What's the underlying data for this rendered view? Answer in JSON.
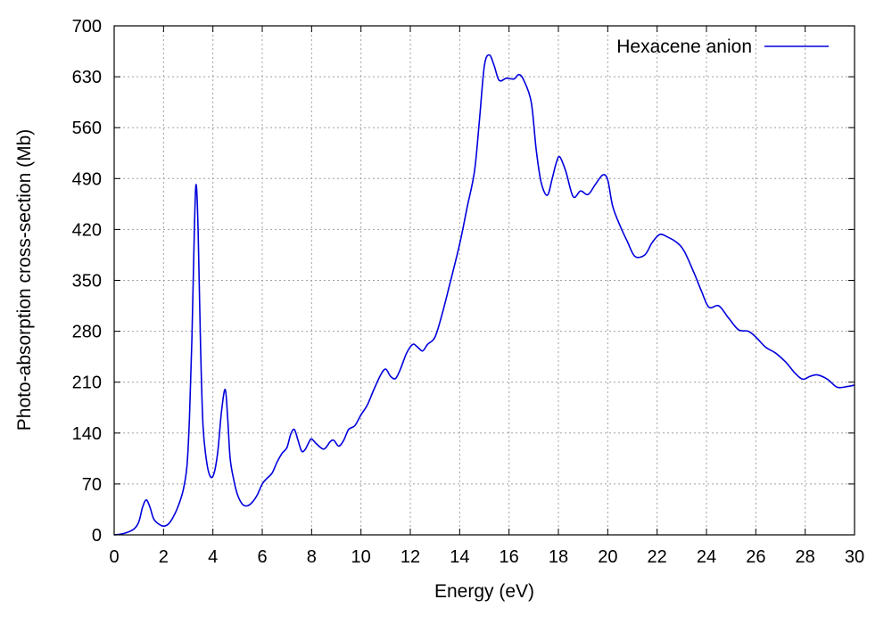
{
  "chart_data": {
    "type": "line",
    "xlabel": "Energy (eV)",
    "ylabel": "Photo-absorption cross-section (Mb)",
    "xlim": [
      0,
      30
    ],
    "ylim": [
      0,
      700
    ],
    "xticks": [
      "0",
      "2",
      "4",
      "6",
      "8",
      "10",
      "12",
      "14",
      "16",
      "18",
      "20",
      "22",
      "24",
      "26",
      "28",
      "30"
    ],
    "yticks": [
      "0",
      "70",
      "140",
      "210",
      "280",
      "350",
      "420",
      "490",
      "560",
      "630",
      "700"
    ],
    "grid": true,
    "legend_position": "top-right",
    "series": [
      {
        "name": "Hexacene anion",
        "color": "#0000dd",
        "points": [
          [
            0.0,
            0
          ],
          [
            0.4,
            2
          ],
          [
            0.8,
            8
          ],
          [
            1.0,
            18
          ],
          [
            1.15,
            38
          ],
          [
            1.3,
            48
          ],
          [
            1.45,
            38
          ],
          [
            1.6,
            22
          ],
          [
            1.8,
            15
          ],
          [
            2.0,
            12
          ],
          [
            2.2,
            15
          ],
          [
            2.4,
            25
          ],
          [
            2.6,
            40
          ],
          [
            2.8,
            62
          ],
          [
            2.95,
            95
          ],
          [
            3.05,
            160
          ],
          [
            3.15,
            270
          ],
          [
            3.25,
            420
          ],
          [
            3.32,
            482
          ],
          [
            3.4,
            420
          ],
          [
            3.5,
            260
          ],
          [
            3.6,
            150
          ],
          [
            3.75,
            100
          ],
          [
            3.9,
            80
          ],
          [
            4.05,
            85
          ],
          [
            4.2,
            115
          ],
          [
            4.35,
            170
          ],
          [
            4.5,
            200
          ],
          [
            4.6,
            160
          ],
          [
            4.7,
            105
          ],
          [
            4.85,
            75
          ],
          [
            5.0,
            55
          ],
          [
            5.2,
            42
          ],
          [
            5.4,
            40
          ],
          [
            5.6,
            45
          ],
          [
            5.8,
            55
          ],
          [
            6.0,
            70
          ],
          [
            6.2,
            78
          ],
          [
            6.4,
            85
          ],
          [
            6.6,
            100
          ],
          [
            6.8,
            112
          ],
          [
            7.0,
            120
          ],
          [
            7.15,
            138
          ],
          [
            7.3,
            145
          ],
          [
            7.45,
            130
          ],
          [
            7.6,
            115
          ],
          [
            7.75,
            118
          ],
          [
            7.9,
            128
          ],
          [
            8.0,
            132
          ],
          [
            8.2,
            125
          ],
          [
            8.5,
            118
          ],
          [
            8.75,
            128
          ],
          [
            8.9,
            130
          ],
          [
            9.1,
            122
          ],
          [
            9.3,
            130
          ],
          [
            9.5,
            145
          ],
          [
            9.75,
            150
          ],
          [
            10.0,
            165
          ],
          [
            10.25,
            178
          ],
          [
            10.5,
            198
          ],
          [
            10.8,
            220
          ],
          [
            11.0,
            228
          ],
          [
            11.2,
            218
          ],
          [
            11.4,
            215
          ],
          [
            11.6,
            228
          ],
          [
            11.85,
            250
          ],
          [
            12.1,
            262
          ],
          [
            12.3,
            258
          ],
          [
            12.5,
            253
          ],
          [
            12.7,
            262
          ],
          [
            13.0,
            272
          ],
          [
            13.3,
            305
          ],
          [
            13.6,
            345
          ],
          [
            14.0,
            400
          ],
          [
            14.3,
            450
          ],
          [
            14.6,
            500
          ],
          [
            14.8,
            570
          ],
          [
            15.0,
            645
          ],
          [
            15.2,
            660
          ],
          [
            15.4,
            645
          ],
          [
            15.6,
            625
          ],
          [
            15.9,
            628
          ],
          [
            16.2,
            627
          ],
          [
            16.4,
            633
          ],
          [
            16.6,
            625
          ],
          [
            16.9,
            595
          ],
          [
            17.1,
            530
          ],
          [
            17.3,
            485
          ],
          [
            17.55,
            467
          ],
          [
            17.75,
            490
          ],
          [
            17.9,
            510
          ],
          [
            18.05,
            520
          ],
          [
            18.3,
            500
          ],
          [
            18.6,
            465
          ],
          [
            18.9,
            473
          ],
          [
            19.2,
            468
          ],
          [
            19.5,
            482
          ],
          [
            19.8,
            495
          ],
          [
            20.0,
            488
          ],
          [
            20.2,
            452
          ],
          [
            20.5,
            425
          ],
          [
            20.8,
            403
          ],
          [
            21.1,
            383
          ],
          [
            21.5,
            385
          ],
          [
            21.8,
            402
          ],
          [
            22.1,
            413
          ],
          [
            22.4,
            410
          ],
          [
            22.8,
            402
          ],
          [
            23.1,
            390
          ],
          [
            23.5,
            360
          ],
          [
            23.8,
            335
          ],
          [
            24.1,
            313
          ],
          [
            24.5,
            315
          ],
          [
            24.9,
            298
          ],
          [
            25.3,
            282
          ],
          [
            25.7,
            280
          ],
          [
            26.0,
            272
          ],
          [
            26.4,
            258
          ],
          [
            26.8,
            250
          ],
          [
            27.2,
            238
          ],
          [
            27.6,
            222
          ],
          [
            27.9,
            214
          ],
          [
            28.2,
            218
          ],
          [
            28.5,
            220
          ],
          [
            28.9,
            214
          ],
          [
            29.3,
            203
          ],
          [
            29.7,
            204
          ],
          [
            30.0,
            206
          ]
        ]
      }
    ]
  }
}
